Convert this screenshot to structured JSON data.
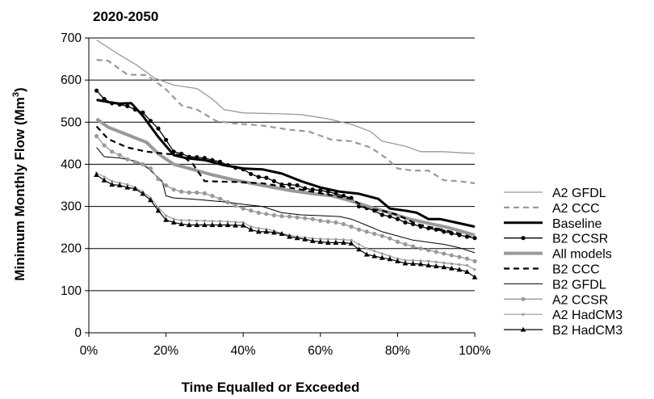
{
  "chart_data": {
    "type": "line",
    "title": "2020-2050",
    "xlabel": "Time Equalled or Exceeded",
    "ylabel_main": "Minimum Monthly Flow (Mm",
    "ylabel_sup": "3",
    "ylabel_close": ")",
    "xlim": [
      0,
      100
    ],
    "ylim": [
      0,
      700
    ],
    "xticks": [
      0,
      20,
      40,
      60,
      80,
      100
    ],
    "xtick_labels": [
      "0%",
      "20%",
      "40%",
      "60%",
      "80%",
      "100%"
    ],
    "yticks": [
      0,
      100,
      200,
      300,
      400,
      500,
      600,
      700
    ],
    "ytick_labels": [
      "0",
      "100",
      "200",
      "300",
      "400",
      "500",
      "600",
      "700"
    ],
    "grid": "horizontal",
    "legend_position": "right",
    "series": [
      {
        "name": "A2 GFDL",
        "color": "#999999",
        "width": 1.3,
        "dash": "",
        "marker": "none",
        "x": [
          2,
          8,
          12,
          17,
          22,
          28,
          32,
          35,
          40,
          50,
          55,
          62,
          68,
          73,
          76,
          82,
          86,
          92,
          97,
          100
        ],
        "y": [
          695,
          660,
          638,
          605,
          588,
          580,
          555,
          530,
          522,
          520,
          518,
          508,
          495,
          478,
          455,
          443,
          430,
          430,
          427,
          426
        ]
      },
      {
        "name": "A2 CCC",
        "color": "#999999",
        "width": 2.2,
        "dash": "7,5",
        "marker": "none",
        "x": [
          2,
          5,
          10,
          15,
          20,
          24,
          28,
          33,
          38,
          45,
          52,
          57,
          63,
          68,
          73,
          77,
          80,
          84,
          88,
          92,
          96,
          100
        ],
        "y": [
          648,
          646,
          613,
          612,
          578,
          540,
          530,
          503,
          497,
          492,
          482,
          478,
          458,
          455,
          440,
          415,
          390,
          385,
          385,
          362,
          360,
          355
        ]
      },
      {
        "name": "Baseline",
        "color": "#000000",
        "width": 3,
        "dash": "",
        "marker": "none",
        "x": [
          2,
          5,
          8,
          11,
          14,
          18,
          22,
          25,
          30,
          35,
          40,
          45,
          50,
          55,
          60,
          65,
          70,
          75,
          78,
          82,
          85,
          88,
          91,
          95,
          100
        ],
        "y": [
          553,
          548,
          544,
          545,
          515,
          465,
          422,
          415,
          410,
          398,
          390,
          388,
          378,
          360,
          345,
          335,
          330,
          318,
          295,
          290,
          285,
          270,
          270,
          262,
          252
        ]
      },
      {
        "name": "B2 CCSR",
        "color": "#000000",
        "width": 1.3,
        "dash": "",
        "marker": "circle",
        "x": [
          2,
          4,
          6,
          8,
          10,
          12,
          14,
          16,
          18,
          20,
          22,
          24,
          26,
          28,
          30,
          32,
          34,
          36,
          38,
          40,
          42,
          44,
          46,
          48,
          50,
          52,
          54,
          56,
          58,
          60,
          62,
          64,
          66,
          68,
          70,
          72,
          74,
          76,
          78,
          80,
          82,
          84,
          86,
          88,
          90,
          92,
          94,
          96,
          98,
          100
        ],
        "y": [
          575,
          555,
          545,
          542,
          538,
          530,
          523,
          503,
          485,
          458,
          430,
          425,
          418,
          417,
          415,
          410,
          406,
          398,
          392,
          388,
          377,
          370,
          368,
          360,
          352,
          352,
          350,
          343,
          340,
          338,
          335,
          330,
          325,
          320,
          300,
          296,
          290,
          280,
          276,
          270,
          262,
          258,
          252,
          248,
          245,
          240,
          236,
          232,
          228,
          225
        ]
      },
      {
        "name": "All models",
        "color": "#999999",
        "width": 4,
        "dash": "",
        "marker": "none",
        "x": [
          2,
          5,
          10,
          15,
          18,
          22,
          26,
          32,
          38,
          45,
          52,
          58,
          63,
          68,
          73,
          78,
          83,
          88,
          93,
          100
        ],
        "y": [
          508,
          488,
          470,
          452,
          425,
          400,
          390,
          375,
          362,
          350,
          338,
          330,
          325,
          313,
          298,
          285,
          270,
          260,
          250,
          232
        ]
      },
      {
        "name": "B2 CCC",
        "color": "#000000",
        "width": 2.2,
        "dash": "7,5",
        "marker": "none",
        "x": [
          2,
          5,
          10,
          15,
          20,
          24,
          27,
          30,
          38,
          45,
          55,
          62,
          68,
          72,
          76,
          80,
          85,
          90,
          95,
          100
        ],
        "y": [
          490,
          460,
          440,
          430,
          425,
          422,
          400,
          360,
          358,
          355,
          340,
          328,
          318,
          295,
          290,
          280,
          258,
          248,
          238,
          225
        ]
      },
      {
        "name": "B2 GFDL",
        "color": "#000000",
        "width": 1,
        "dash": "",
        "marker": "none",
        "x": [
          2,
          4,
          8,
          12,
          14,
          16,
          19,
          20,
          22,
          26,
          30,
          36,
          40,
          45,
          50,
          55,
          60,
          65,
          68,
          72,
          76,
          80,
          84,
          88,
          92,
          96,
          100
        ],
        "y": [
          440,
          418,
          415,
          408,
          400,
          385,
          360,
          325,
          320,
          318,
          315,
          310,
          305,
          300,
          285,
          280,
          278,
          276,
          270,
          255,
          240,
          230,
          220,
          215,
          210,
          202,
          190
        ]
      },
      {
        "name": "A2 CCSR",
        "color": "#999999",
        "width": 1.3,
        "dash": "",
        "marker": "circle",
        "x": [
          2,
          4,
          6,
          8,
          10,
          12,
          14,
          16,
          18,
          20,
          22,
          24,
          26,
          28,
          30,
          32,
          34,
          36,
          38,
          40,
          42,
          44,
          46,
          48,
          50,
          52,
          54,
          56,
          58,
          60,
          62,
          64,
          66,
          68,
          70,
          72,
          74,
          76,
          78,
          80,
          82,
          84,
          86,
          88,
          90,
          92,
          94,
          96,
          98,
          100
        ],
        "y": [
          467,
          445,
          430,
          422,
          412,
          405,
          400,
          390,
          365,
          350,
          340,
          335,
          333,
          333,
          331,
          325,
          318,
          310,
          302,
          295,
          290,
          285,
          282,
          279,
          277,
          276,
          274,
          272,
          270,
          266,
          264,
          262,
          258,
          252,
          245,
          240,
          235,
          230,
          224,
          216,
          210,
          205,
          200,
          196,
          192,
          188,
          184,
          180,
          176,
          170
        ]
      },
      {
        "name": "A2 HadCM3",
        "color": "#999999",
        "width": 1.2,
        "dash": "",
        "marker": "dot",
        "x": [
          2,
          4,
          6,
          8,
          10,
          12,
          14,
          16,
          18,
          20,
          22,
          24,
          26,
          28,
          30,
          32,
          34,
          36,
          38,
          40,
          42,
          44,
          46,
          48,
          50,
          52,
          54,
          56,
          58,
          60,
          62,
          64,
          66,
          68,
          70,
          72,
          74,
          76,
          78,
          80,
          82,
          84,
          86,
          88,
          90,
          92,
          94,
          96,
          98,
          100
        ],
        "y": [
          380,
          370,
          360,
          356,
          352,
          345,
          335,
          320,
          298,
          278,
          270,
          267,
          267,
          266,
          266,
          265,
          265,
          264,
          263,
          262,
          252,
          248,
          246,
          242,
          236,
          232,
          228,
          226,
          224,
          223,
          222,
          222,
          221,
          220,
          210,
          200,
          194,
          188,
          182,
          176,
          172,
          172,
          171,
          170,
          168,
          166,
          164,
          162,
          160,
          150
        ]
      },
      {
        "name": "B2 HadCM3",
        "color": "#000000",
        "width": 1.2,
        "dash": "",
        "marker": "triangle",
        "x": [
          2,
          4,
          6,
          8,
          10,
          12,
          14,
          16,
          18,
          20,
          22,
          24,
          26,
          28,
          30,
          32,
          34,
          36,
          38,
          40,
          42,
          44,
          46,
          48,
          50,
          52,
          54,
          56,
          58,
          60,
          62,
          64,
          66,
          68,
          70,
          72,
          74,
          76,
          78,
          80,
          82,
          84,
          86,
          88,
          90,
          92,
          94,
          96,
          98,
          100
        ],
        "y": [
          375,
          362,
          352,
          350,
          345,
          342,
          330,
          315,
          290,
          268,
          262,
          258,
          256,
          256,
          256,
          256,
          256,
          256,
          255,
          255,
          245,
          240,
          240,
          238,
          235,
          228,
          225,
          222,
          218,
          216,
          214,
          214,
          214,
          212,
          198,
          186,
          182,
          178,
          175,
          170,
          165,
          164,
          163,
          160,
          158,
          156,
          153,
          150,
          145,
          132
        ]
      }
    ]
  }
}
